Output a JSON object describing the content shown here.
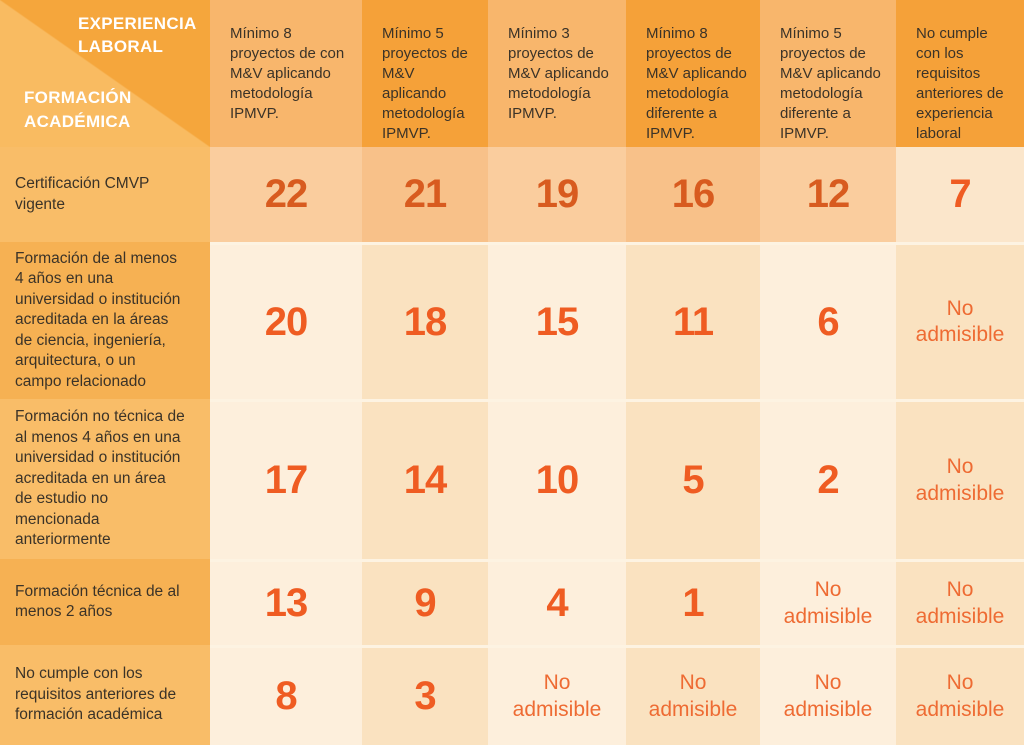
{
  "colors": {
    "corner-dark": "#F5A63C",
    "corner-light": "#F9BB61",
    "head-light": "#F8B66C",
    "head-dark": "#F5A139",
    "label-light": "#F9BD68",
    "label-dark": "#F6B153",
    "peach-light": "#FACD9E",
    "peach-dark": "#F8C189",
    "cream-light": "#FDEFDC",
    "cream-dark": "#FAE2C0",
    "gap": "#FDF3E2",
    "ink-head": "#3B3328",
    "num-dark": "#D85B1F",
    "num-bright": "#EF5C22",
    "noadm": "#EE6B33"
  },
  "chart_data": {
    "type": "table",
    "x_header": "EXPERIENCIA\nLABORAL",
    "y_header": "FORMACIÓN\nACADÉMICA",
    "columns": [
      "Mínimo 8 proyectos de con M&V aplicando metodología IPMVP.",
      "Mínimo 5 proyectos de M&V aplicando metodología IPMVP.",
      "Mínimo 3 proyectos de M&V aplicando metodología IPMVP.",
      "Mínimo 8 proyectos de M&V aplicando metodología diferente a IPMVP.",
      "Mínimo 5 proyectos de M&V aplicando metodología diferente a IPMVP.",
      "No cumple con los requisitos anteriores de experiencia laboral"
    ],
    "rows": [
      {
        "label": "Certificación CMVP vigente",
        "values": [
          "22",
          "21",
          "19",
          "16",
          "12",
          "7"
        ]
      },
      {
        "label": "Formación de al menos 4 años en una universidad o institución acreditada en la áreas de ciencia, ingeniería, arquitectura, o un campo relacionado",
        "values": [
          "20",
          "18",
          "15",
          "11",
          "6",
          "No admisible"
        ]
      },
      {
        "label": "Formación no técnica de al menos 4 años en una universidad o institución acreditada en un área de estudio no mencionada anteriormente",
        "values": [
          "17",
          "14",
          "10",
          "5",
          "2",
          "No admisible"
        ]
      },
      {
        "label": "Formación técnica de al menos 2 años",
        "values": [
          "13",
          "9",
          "4",
          "1",
          "No admisible",
          "No admisible"
        ]
      },
      {
        "label": "No cumple con los requisitos anteriores de formación académica",
        "values": [
          "8",
          "3",
          "No admisible",
          "No admisible",
          "No admisible",
          "No admisible"
        ]
      }
    ]
  }
}
